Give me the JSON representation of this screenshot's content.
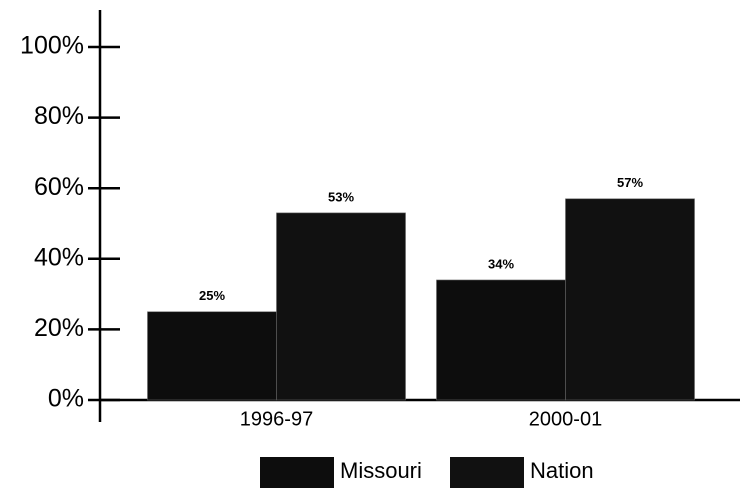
{
  "chart_data": {
    "type": "bar",
    "categories": [
      "1996-97",
      "2000-01"
    ],
    "series": [
      {
        "name": "Missouri",
        "color": "#0d0d0d",
        "values": [
          25,
          34
        ],
        "value_labels": [
          "25%",
          "34%"
        ]
      },
      {
        "name": "Nation",
        "color": "#111111",
        "values": [
          53,
          57
        ],
        "value_labels": [
          "53%",
          "57%"
        ]
      }
    ],
    "ylim": [
      0,
      100
    ],
    "yticks": [
      {
        "value": 0,
        "label": "0%"
      },
      {
        "value": 20,
        "label": "20%"
      },
      {
        "value": 40,
        "label": "40%"
      },
      {
        "value": 60,
        "label": "60%"
      },
      {
        "value": 80,
        "label": "80%"
      },
      {
        "value": 100,
        "label": "100%"
      }
    ],
    "legend": "bottom"
  }
}
